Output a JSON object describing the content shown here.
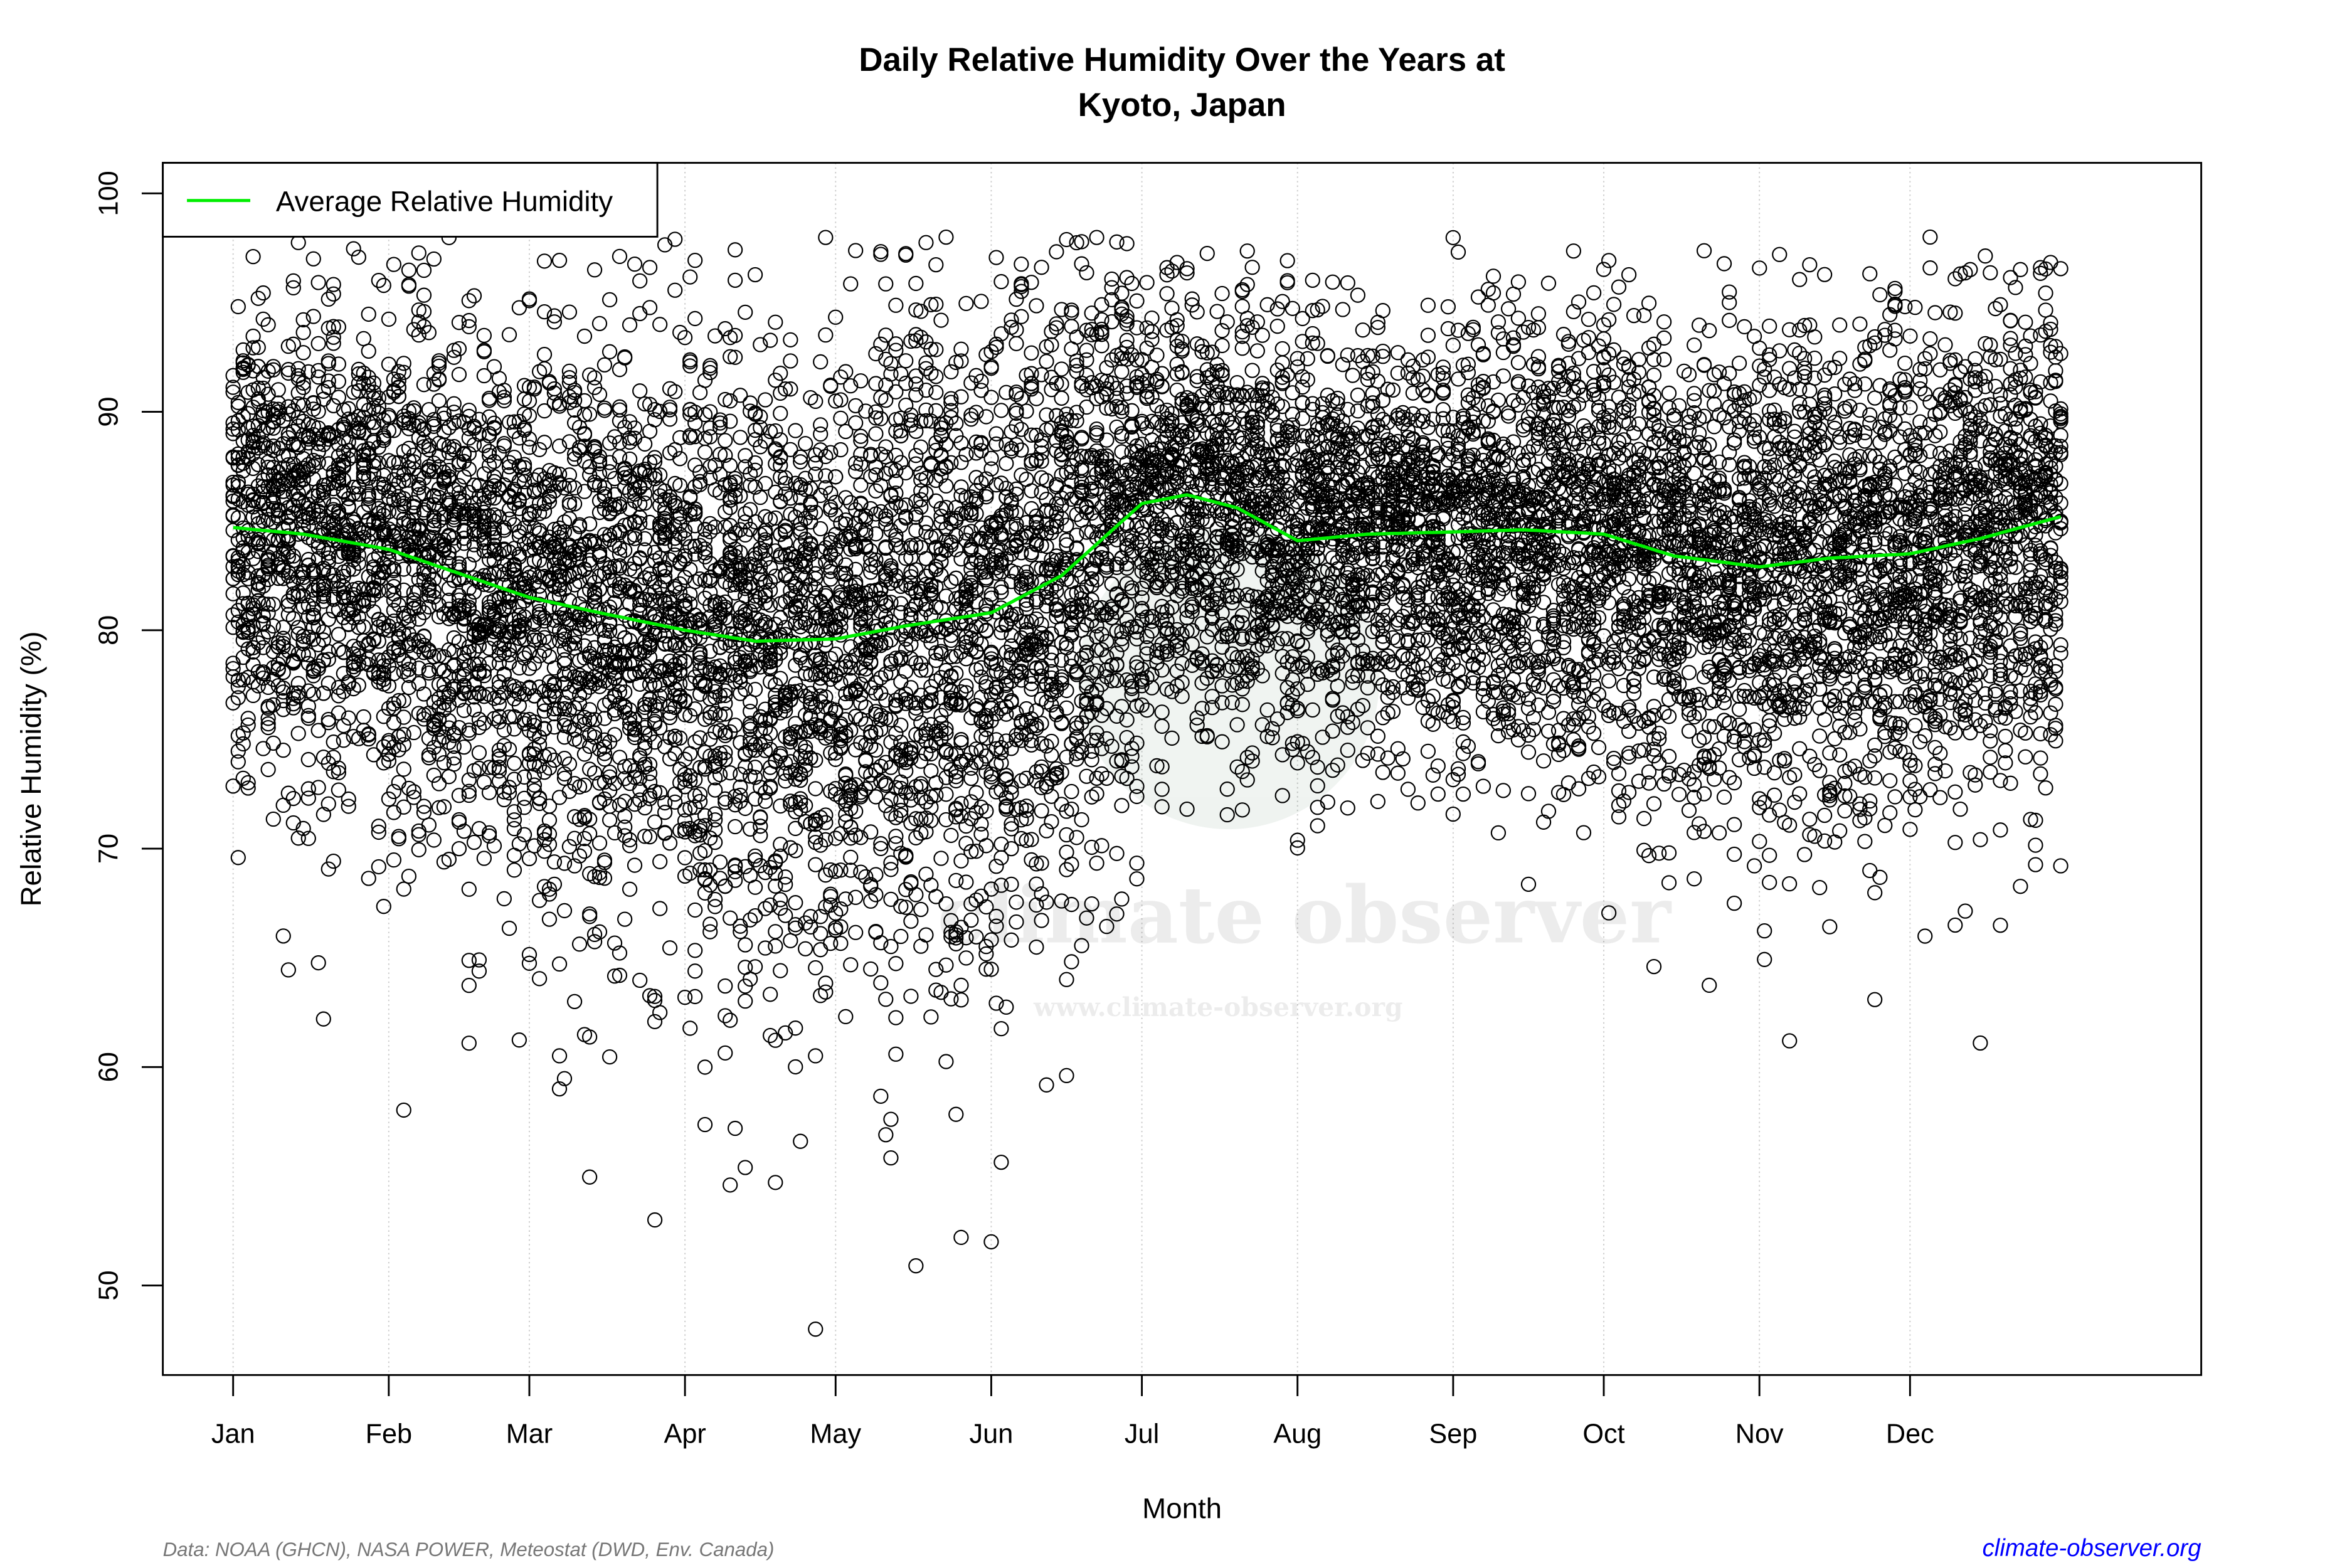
{
  "chart_data": {
    "type": "scatter",
    "title": "Daily Relative Humidity Over the Years at",
    "subtitle": "Kyoto, Japan",
    "xlabel": "Month",
    "ylabel": "Relative Humidity  (%)",
    "ylim": [
      45.9,
      101.4
    ],
    "xlim_day": [
      -13,
      393
    ],
    "yticks": [
      50,
      60,
      70,
      80,
      90,
      100
    ],
    "xticks": [
      {
        "label": "Jan",
        "day": 1
      },
      {
        "label": "Feb",
        "day": 32
      },
      {
        "label": "Mar",
        "day": 60
      },
      {
        "label": "Apr",
        "day": 91
      },
      {
        "label": "May",
        "day": 121
      },
      {
        "label": "Jun",
        "day": 152
      },
      {
        "label": "Jul",
        "day": 182
      },
      {
        "label": "Aug",
        "day": 213
      },
      {
        "label": "Sep",
        "day": 244
      },
      {
        "label": "Oct",
        "day": 274
      },
      {
        "label": "Nov",
        "day": 305
      },
      {
        "label": "Dec",
        "day": 335
      }
    ],
    "grid": "vertical-dotted",
    "legend": {
      "placement": "top-left",
      "label": "Average Relative Humidity",
      "color": "#00ee00"
    },
    "average_series": {
      "name": "Average Relative Humidity",
      "day": [
        1,
        15,
        32,
        46,
        60,
        74,
        91,
        105,
        121,
        135,
        152,
        166,
        182,
        191,
        201,
        213,
        227,
        244,
        258,
        274,
        288,
        305,
        319,
        335,
        349,
        365
      ],
      "value": [
        84.7,
        84.4,
        83.7,
        82.6,
        81.5,
        80.8,
        80.0,
        79.5,
        79.6,
        80.2,
        80.8,
        82.5,
        85.8,
        86.2,
        85.6,
        84.1,
        84.4,
        84.5,
        84.6,
        84.4,
        83.4,
        82.9,
        83.3,
        83.5,
        84.2,
        85.2
      ]
    },
    "daily_observations": {
      "spread_sd_by_month": [
        5.0,
        5.5,
        6.0,
        6.5,
        7.0,
        6.5,
        4.5,
        4.2,
        4.8,
        5.0,
        5.2,
        5.0
      ],
      "count_per_day": 30,
      "max_value": 98.0,
      "min_value": 48.0,
      "notable_points": [
        {
          "day": 117,
          "value": 48.0
        },
        {
          "day": 137,
          "value": 50.9
        },
        {
          "day": 85,
          "value": 53.0
        },
        {
          "day": 146,
          "value": 52.2
        },
        {
          "day": 152,
          "value": 52.0
        },
        {
          "day": 100,
          "value": 54.6
        },
        {
          "day": 103,
          "value": 55.4
        },
        {
          "day": 114,
          "value": 56.6
        },
        {
          "day": 19,
          "value": 62.2
        },
        {
          "day": 311,
          "value": 61.2
        },
        {
          "day": 349,
          "value": 61.1
        },
        {
          "day": 11,
          "value": 66.0
        },
        {
          "day": 339,
          "value": 98.0
        },
        {
          "day": 66,
          "value": 59.0
        },
        {
          "day": 131,
          "value": 56.9
        }
      ]
    }
  },
  "watermark": {
    "brand": "climate observer",
    "url": "www.climate-observer.org"
  },
  "footer": {
    "source": "Data: NOAA (GHCN), NASA POWER, Meteostat (DWD, Env. Canada)",
    "site": "climate-observer.org",
    "site_color": "#0000ff"
  }
}
